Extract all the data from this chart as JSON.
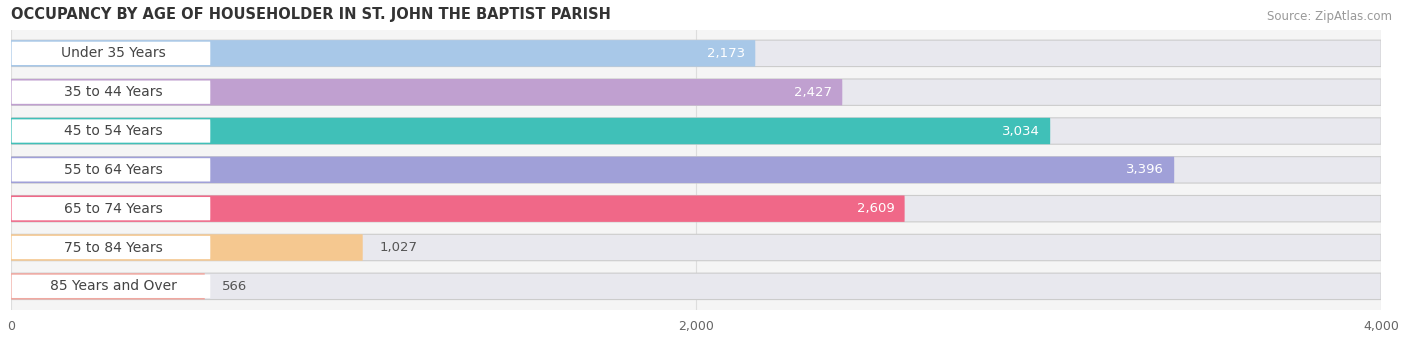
{
  "title": "OCCUPANCY BY AGE OF HOUSEHOLDER IN ST. JOHN THE BAPTIST PARISH",
  "source": "Source: ZipAtlas.com",
  "categories": [
    "Under 35 Years",
    "35 to 44 Years",
    "45 to 54 Years",
    "55 to 64 Years",
    "65 to 74 Years",
    "75 to 84 Years",
    "85 Years and Over"
  ],
  "values": [
    2173,
    2427,
    3034,
    3396,
    2609,
    1027,
    566
  ],
  "bar_colors": [
    "#a8c8e8",
    "#c0a0d0",
    "#40c0b8",
    "#a0a0d8",
    "#f06888",
    "#f5c890",
    "#f0a8a0"
  ],
  "bar_bg_color": "#e8e8ee",
  "xlim_min": 0,
  "xlim_max": 4000,
  "xticks": [
    0,
    2000,
    4000
  ],
  "value_inside_threshold": 1500,
  "value_inside_color": "#ffffff",
  "value_outside_color": "#555555",
  "label_bg_color": "#ffffff",
  "label_text_color": "#444444",
  "title_color": "#333333",
  "source_color": "#999999",
  "fig_bg_color": "#ffffff",
  "plot_bg_color": "#f5f5f5",
  "bar_height": 0.68,
  "bar_spacing": 1.0,
  "grid_color": "#dddddd",
  "title_fontsize": 10.5,
  "label_fontsize": 10,
  "value_fontsize": 9.5,
  "tick_fontsize": 9
}
